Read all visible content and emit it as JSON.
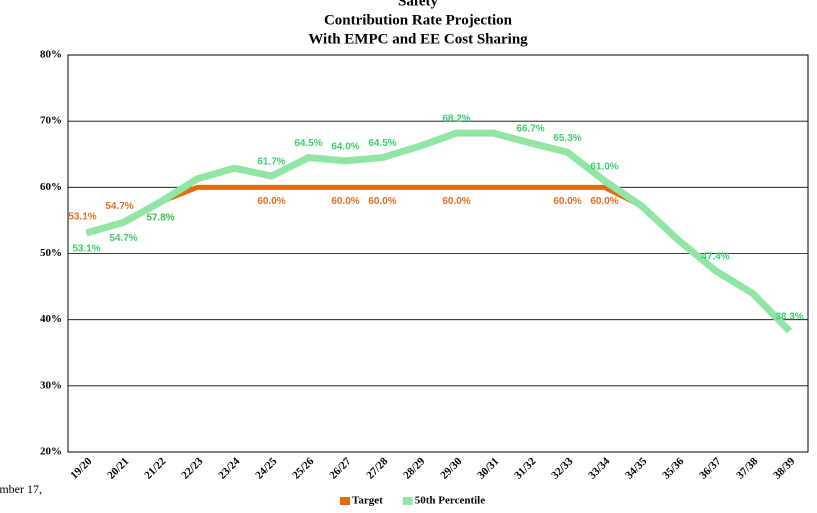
{
  "chart_data": {
    "type": "line",
    "title": "Safety",
    "subtitle": "Contribution Rate Projection",
    "subtitle2": "With EMPC and EE Cost Sharing",
    "footer": "ember 17,",
    "categories": [
      "19/20",
      "20/21",
      "21/22",
      "22/23",
      "23/24",
      "24/25",
      "25/26",
      "26/27",
      "27/28",
      "28/29",
      "29/30",
      "30/31",
      "31/32",
      "32/33",
      "33/34",
      "34/35",
      "35/36",
      "36/37",
      "37/38",
      "38/39"
    ],
    "series": [
      {
        "name": "Target",
        "color": "#e46c0a",
        "values": [
          53.1,
          54.7,
          57.8,
          60,
          60,
          60,
          60,
          60,
          60,
          60,
          60,
          60,
          60,
          60,
          60,
          57.2,
          52.0,
          47.4,
          44.0,
          38.3
        ],
        "value_labels": [
          "53.1%",
          "54.7%",
          "57.8%",
          null,
          null,
          "60.0%",
          null,
          "60.0%",
          "60.0%",
          null,
          "60.0%",
          null,
          null,
          "60.0%",
          "60.0%",
          null,
          null,
          null,
          null,
          null
        ]
      },
      {
        "name": "50th Percentile",
        "color": "#92e6a5",
        "values": [
          53.1,
          54.7,
          57.8,
          61.3,
          62.9,
          61.7,
          64.5,
          64.0,
          64.5,
          66.2,
          68.2,
          68.2,
          66.7,
          65.3,
          61.0,
          57.2,
          52.0,
          47.4,
          44.0,
          38.3
        ],
        "value_labels": [
          "53.1%",
          "54.7%",
          "57.8%",
          null,
          null,
          "61.7%",
          "64.5%",
          "64.0%",
          "64.5%",
          null,
          "68.2%",
          null,
          "66.7%",
          "65.3%",
          "61.0%",
          null,
          null,
          "47.4%",
          null,
          "38.3%"
        ]
      }
    ],
    "ylim": [
      20,
      80
    ],
    "yticks": [
      {
        "value": 20,
        "label": "20%"
      },
      {
        "value": 30,
        "label": "30%"
      },
      {
        "value": 40,
        "label": "40%"
      },
      {
        "value": 50,
        "label": "50%"
      },
      {
        "value": 60,
        "label": "60%"
      },
      {
        "value": 70,
        "label": "70%"
      },
      {
        "value": 80,
        "label": "80%"
      }
    ],
    "grid": true
  }
}
